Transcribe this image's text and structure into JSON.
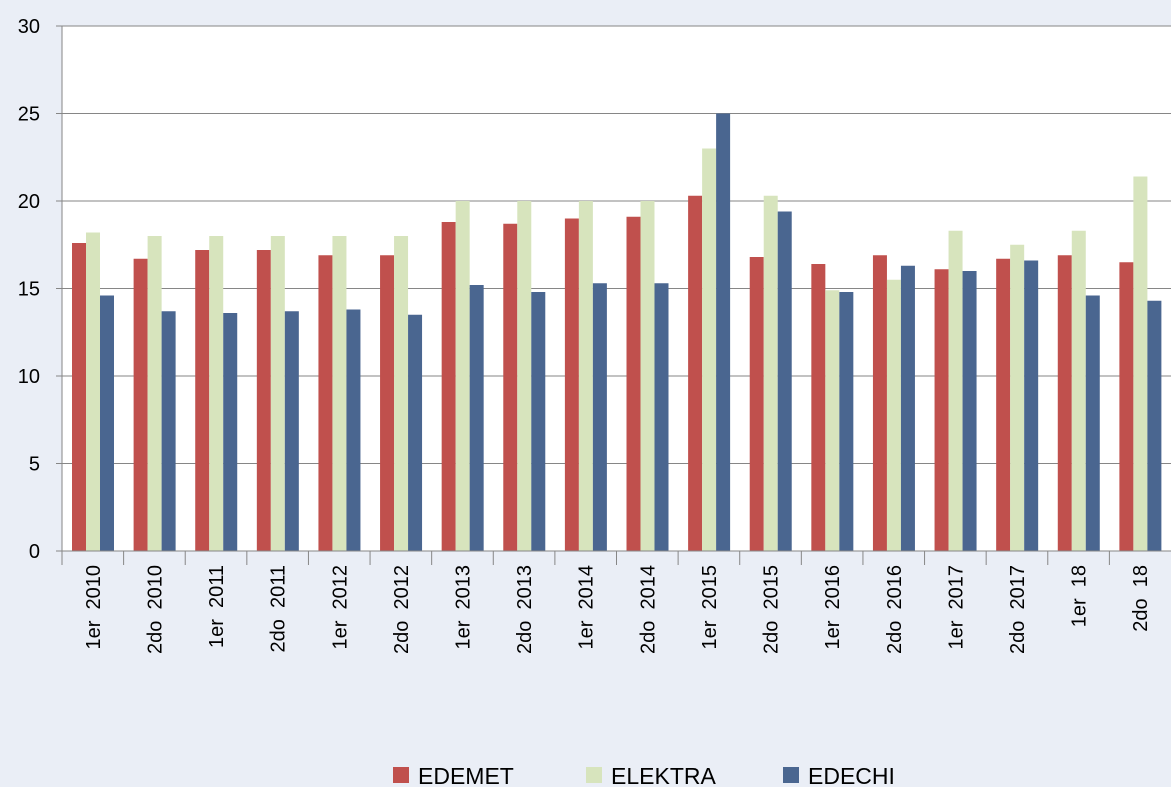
{
  "chart_data": {
    "type": "bar",
    "categories": [
      "1er  2010",
      "2do  2010",
      "1er  2011",
      "2do  2011",
      "1er  2012",
      "2do  2012",
      "1er  2013",
      "2do  2013",
      "1er  2014",
      "2do  2014",
      "1er  2015",
      "2do  2015",
      "1er  2016",
      "2do  2016",
      "1er  2017",
      "2do  2017",
      "1er  18",
      "2do  18"
    ],
    "series": [
      {
        "name": "EDEMET",
        "color": "#c0504d",
        "values": [
          17.6,
          16.7,
          17.2,
          17.2,
          16.9,
          16.9,
          18.8,
          18.7,
          19.0,
          19.1,
          20.3,
          16.8,
          16.4,
          16.9,
          16.1,
          16.7,
          16.9,
          16.5
        ]
      },
      {
        "name": "ELEKTRA",
        "color": "#d7e4bd",
        "values": [
          18.2,
          18.0,
          18.0,
          18.0,
          18.0,
          18.0,
          20.0,
          20.0,
          20.0,
          20.0,
          23.0,
          20.3,
          14.9,
          15.5,
          18.3,
          17.5,
          18.3,
          21.4
        ]
      },
      {
        "name": "EDECHI",
        "color": "#4a6690",
        "values": [
          14.6,
          13.7,
          13.6,
          13.7,
          13.8,
          13.5,
          15.2,
          14.8,
          15.3,
          15.3,
          25.0,
          19.4,
          14.8,
          16.3,
          16.0,
          16.6,
          14.6,
          14.3
        ]
      }
    ],
    "ylim": [
      0,
      30
    ],
    "yticks": [
      0,
      5,
      10,
      15,
      20,
      25,
      30
    ],
    "grid": true,
    "legend": "bottom"
  }
}
